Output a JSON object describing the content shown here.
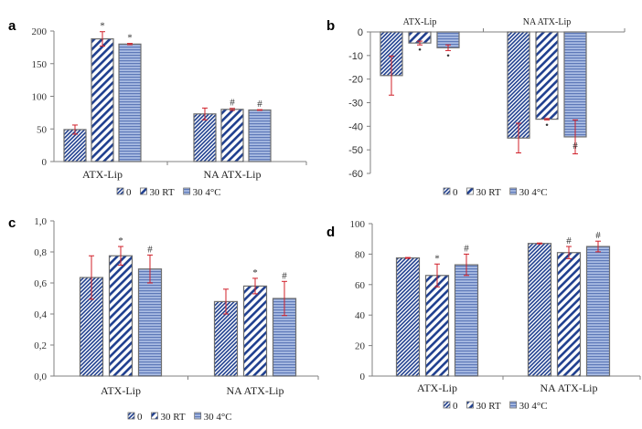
{
  "figure": {
    "colors": {
      "bar_dark": "#1f3f8f",
      "bar_light": "#ffffff",
      "bar_horizontal_fill": "#8fa6d6",
      "bar_horizontal_line": "#5d78b8",
      "bar_outline": "#6e6e6e",
      "error_bar": "#d0202a",
      "axis": "#808080"
    },
    "legend": [
      "0",
      "30 RT",
      "30 4°C"
    ]
  },
  "chart_data": [
    {
      "panel": "a",
      "type": "bar",
      "categories": [
        "ATX-Lip",
        "NA ATX-Lip"
      ],
      "series": [
        {
          "name": "0",
          "values": [
            49,
            73
          ],
          "errors": [
            7,
            9
          ],
          "sig": [
            "",
            ""
          ]
        },
        {
          "name": "30 RT",
          "values": [
            188,
            80
          ],
          "errors": [
            11,
            1.5
          ],
          "sig": [
            "*",
            "#"
          ]
        },
        {
          "name": "30 4°C",
          "values": [
            180,
            79
          ],
          "errors": [
            1,
            0.5
          ],
          "sig": [
            "*",
            "#"
          ]
        }
      ],
      "ylim": [
        0,
        200
      ],
      "yticks": [
        0,
        50,
        100,
        150,
        200
      ],
      "ytick_labels": [
        "0",
        "50",
        "100",
        "150",
        "200"
      ],
      "legend_position": "bottom"
    },
    {
      "panel": "b",
      "type": "bar",
      "categories": [
        "ATX-Lip",
        "NA ATX-Lip"
      ],
      "series": [
        {
          "name": "0",
          "values": [
            -18.5,
            -45
          ],
          "errors": [
            8.3,
            6.3
          ],
          "sig": [
            "",
            ""
          ]
        },
        {
          "name": "30 RT",
          "values": [
            -4.7,
            -37
          ],
          "errors": [
            0.8,
            0.3
          ],
          "sig": [
            "•",
            "•"
          ]
        },
        {
          "name": "30 4°C",
          "values": [
            -6.7,
            -44.5
          ],
          "errors": [
            1.2,
            7.2
          ],
          "sig": [
            "•",
            "#"
          ]
        }
      ],
      "ylim": [
        -60,
        0
      ],
      "yticks": [
        0,
        -10,
        -20,
        -30,
        -40,
        -50,
        -60
      ],
      "ytick_labels": [
        "0",
        "-10",
        "-20",
        "-30",
        "-40",
        "-50",
        "-60"
      ],
      "category_labels_position": "top",
      "legend_position": "bottom"
    },
    {
      "panel": "c",
      "type": "bar",
      "categories": [
        "ATX-Lip",
        "NA ATX-Lip"
      ],
      "series": [
        {
          "name": "0",
          "values": [
            0.635,
            0.48
          ],
          "errors": [
            0.14,
            0.08
          ],
          "sig": [
            "",
            ""
          ]
        },
        {
          "name": "30 RT",
          "values": [
            0.775,
            0.58
          ],
          "errors": [
            0.06,
            0.05
          ],
          "sig": [
            "*",
            "*"
          ]
        },
        {
          "name": "30 4°C",
          "values": [
            0.69,
            0.5
          ],
          "errors": [
            0.09,
            0.11
          ],
          "sig": [
            "#",
            "#"
          ]
        }
      ],
      "ylim": [
        0,
        1.0
      ],
      "yticks": [
        0,
        0.2,
        0.4,
        0.6,
        0.8,
        1.0
      ],
      "ytick_labels": [
        "0,0",
        "0,2",
        "0,4",
        "0,6",
        "0,8",
        "1,0"
      ],
      "legend_position": "bottom"
    },
    {
      "panel": "d",
      "type": "bar",
      "categories": [
        "ATX-Lip",
        "NA ATX-Lip"
      ],
      "series": [
        {
          "name": "0",
          "values": [
            77.5,
            87
          ],
          "errors": [
            0.3,
            0.3
          ],
          "sig": [
            "",
            ""
          ]
        },
        {
          "name": "30 RT",
          "values": [
            66,
            81
          ],
          "errors": [
            7.5,
            4
          ],
          "sig": [
            "*",
            "#"
          ]
        },
        {
          "name": "30 4°C",
          "values": [
            73,
            85
          ],
          "errors": [
            7,
            3.5
          ],
          "sig": [
            "#",
            "#"
          ]
        }
      ],
      "ylim": [
        0,
        100
      ],
      "yticks": [
        0,
        20,
        40,
        60,
        80,
        100
      ],
      "ytick_labels": [
        "0",
        "20",
        "40",
        "60",
        "80",
        "100"
      ],
      "legend_position": "bottom"
    }
  ]
}
